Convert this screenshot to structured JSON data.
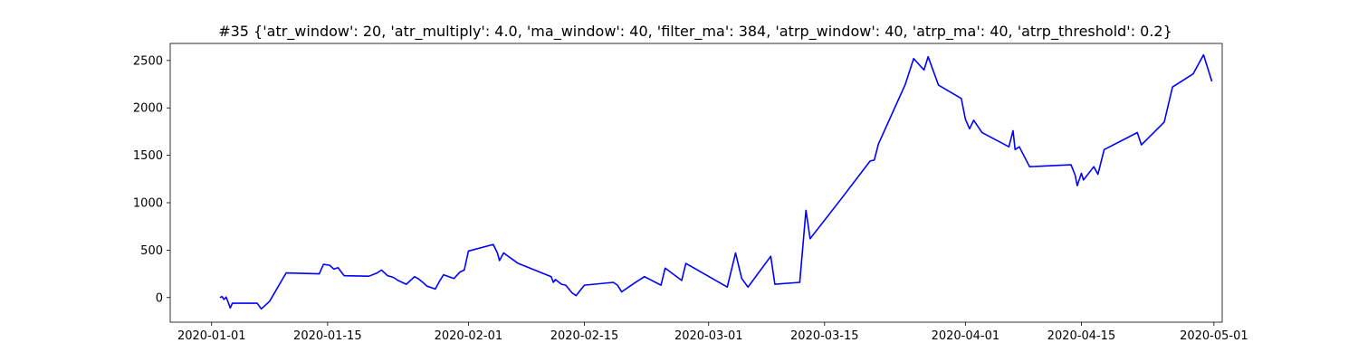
{
  "chart_data": {
    "type": "line",
    "title": "#35 {'atr_window': 20, 'atr_multiply': 4.0, 'ma_window': 40, 'filter_ma': 384, 'atrp_window': 40, 'atrp_ma': 40, 'atrp_threshold': 0.2}",
    "xlabel": "",
    "ylabel": "",
    "xlim": [
      "2019-12-27",
      "2020-05-02"
    ],
    "ylim": [
      -260,
      2680
    ],
    "grid": false,
    "line_color": "#0000ff",
    "x_ticks": [
      "2020-01-01",
      "2020-01-15",
      "2020-02-01",
      "2020-02-15",
      "2020-03-01",
      "2020-03-15",
      "2020-04-01",
      "2020-04-15",
      "2020-05-01"
    ],
    "y_ticks": [
      0,
      500,
      1000,
      1500,
      2000,
      2500
    ],
    "series": [
      {
        "x": [
          "2020-01-02T00:00",
          "2020-01-02T06:00",
          "2020-01-02T12:00",
          "2020-01-02T18:00",
          "2020-01-03T00:00",
          "2020-01-03T06:00",
          "2020-01-03T12:00",
          "2020-01-06T12:00",
          "2020-01-07T00:00",
          "2020-01-08T00:00",
          "2020-01-10T00:00",
          "2020-01-14T00:00",
          "2020-01-14T12:00",
          "2020-01-15T06:00",
          "2020-01-15T18:00",
          "2020-01-16T06:00",
          "2020-01-17T00:00",
          "2020-01-20T00:00",
          "2020-01-21T00:00",
          "2020-01-21T12:00",
          "2020-01-22T06:00",
          "2020-01-23T00:00",
          "2020-01-23T12:00",
          "2020-01-24T12:00",
          "2020-01-25T12:00",
          "2020-01-26T00:00",
          "2020-01-26T12:00",
          "2020-01-27T00:00",
          "2020-01-28T00:00",
          "2020-01-28T12:00",
          "2020-01-29T00:00",
          "2020-01-30T06:00",
          "2020-01-31T00:00",
          "2020-01-31T12:00",
          "2020-02-01T00:00",
          "2020-02-04T00:00",
          "2020-02-04T12:00",
          "2020-02-04T18:00",
          "2020-02-05T06:00",
          "2020-02-07T00:00",
          "2020-02-11T00:00",
          "2020-02-11T06:00",
          "2020-02-11T12:00",
          "2020-02-12T06:00",
          "2020-02-12T18:00",
          "2020-02-13T12:00",
          "2020-02-14T00:00",
          "2020-02-15T00:00",
          "2020-02-18T12:00",
          "2020-02-19T00:00",
          "2020-02-19T12:00",
          "2020-02-21T00:00",
          "2020-02-22T06:00",
          "2020-02-24T06:00",
          "2020-02-24T18:00",
          "2020-02-26T18:00",
          "2020-02-27T06:00",
          "2020-03-03T06:00",
          "2020-03-04T06:00",
          "2020-03-05T00:00",
          "2020-03-05T18:00",
          "2020-03-08T12:00",
          "2020-03-09T00:00",
          "2020-03-12T00:00",
          "2020-03-12T18:00",
          "2020-03-13T06:00",
          "2020-03-17T00:00",
          "2020-03-20T12:00",
          "2020-03-21T00:00",
          "2020-03-21T12:00",
          "2020-03-24T18:00",
          "2020-03-25T18:00",
          "2020-03-27T00:00",
          "2020-03-27T12:00",
          "2020-03-28T18:00",
          "2020-03-31T12:00",
          "2020-04-01T00:00",
          "2020-04-01T12:00",
          "2020-04-02T00:00",
          "2020-04-03T00:00",
          "2020-04-06T06:00",
          "2020-04-06T18:00",
          "2020-04-07T00:00",
          "2020-04-07T12:00",
          "2020-04-08T18:00",
          "2020-04-13T18:00",
          "2020-04-14T06:00",
          "2020-04-14T12:00",
          "2020-04-15T00:00",
          "2020-04-15T06:00",
          "2020-04-16T12:00",
          "2020-04-17T00:00",
          "2020-04-17T18:00",
          "2020-04-21T18:00",
          "2020-04-22T06:00",
          "2020-04-25T00:00",
          "2020-04-26T00:00",
          "2020-04-28T12:00",
          "2020-04-29T18:00",
          "2020-04-30T00:00",
          "2020-04-30T18:00"
        ],
        "y": [
          0,
          10,
          -20,
          5,
          -50,
          -110,
          -60,
          -60,
          -120,
          -40,
          260,
          250,
          350,
          340,
          300,
          315,
          230,
          225,
          260,
          290,
          230,
          210,
          180,
          140,
          220,
          195,
          160,
          120,
          90,
          170,
          240,
          200,
          270,
          290,
          490,
          560,
          470,
          390,
          470,
          360,
          220,
          160,
          190,
          140,
          130,
          50,
          20,
          130,
          160,
          130,
          60,
          150,
          220,
          130,
          310,
          180,
          360,
          110,
          470,
          200,
          110,
          435,
          140,
          160,
          920,
          620,
          1040,
          1440,
          1450,
          1620,
          2250,
          2520,
          2400,
          2540,
          2240,
          2100,
          1880,
          1780,
          1870,
          1740,
          1590,
          1760,
          1560,
          1590,
          1380,
          1400,
          1290,
          1180,
          1310,
          1240,
          1380,
          1300,
          1560,
          1740,
          1610,
          1850,
          2220,
          2360,
          2560,
          2490,
          2280
        ]
      }
    ]
  }
}
